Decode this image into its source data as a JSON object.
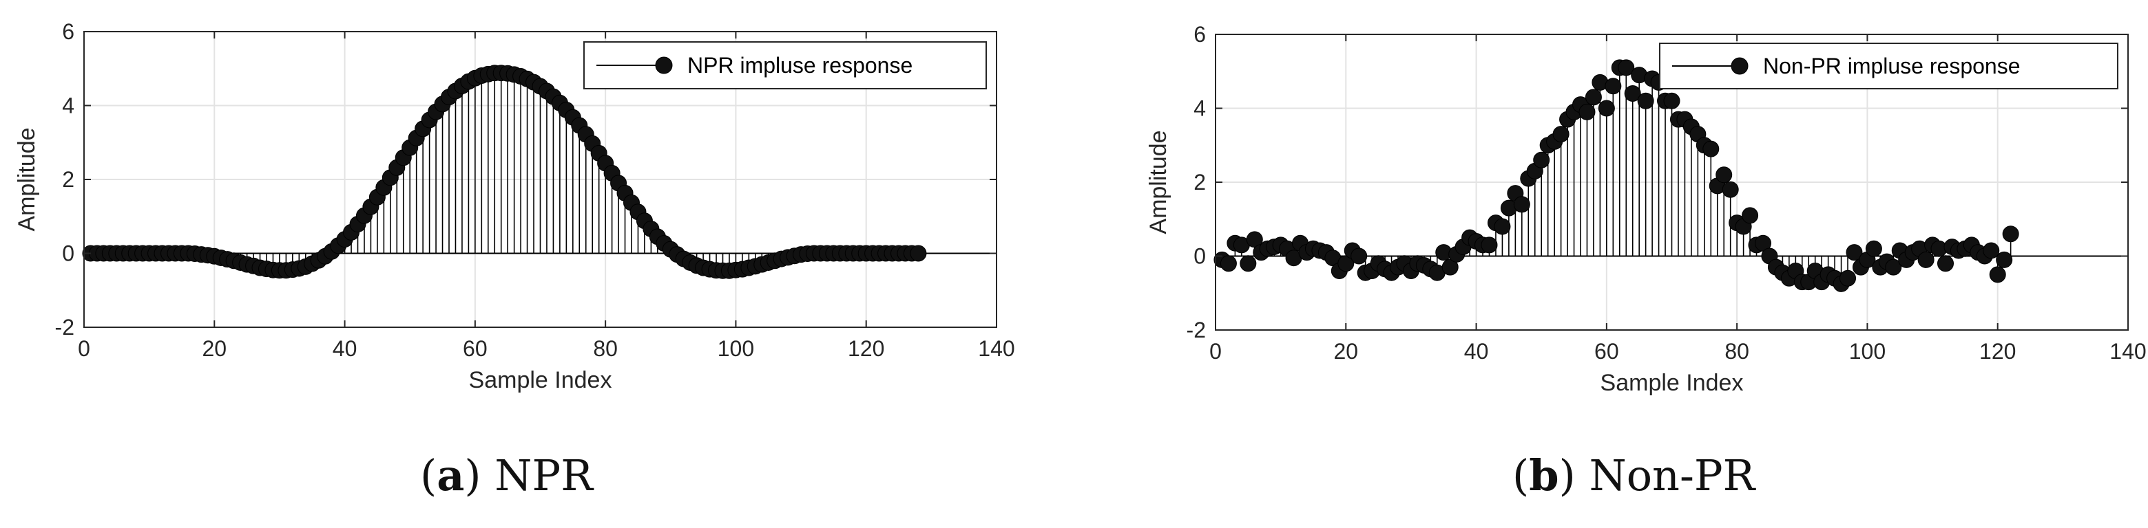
{
  "figure": {
    "captions": [
      {
        "label": "a",
        "text": "NPR"
      },
      {
        "label": "b",
        "text": "Non-PR"
      }
    ]
  },
  "chart_data": [
    {
      "type": "stem",
      "xlabel": "Sample Index",
      "ylabel": "Amplitude",
      "xlim": [
        0,
        140
      ],
      "ylim": [
        -2,
        6
      ],
      "xticks": [
        0,
        20,
        40,
        60,
        80,
        100,
        120,
        140
      ],
      "yticks": [
        -2,
        0,
        2,
        4,
        6
      ],
      "grid": true,
      "legend_position": "top-right",
      "series": [
        {
          "name": "NPR impluse response",
          "color": "#000000",
          "x_start": 1,
          "values": [
            0,
            0,
            0,
            0,
            0,
            0,
            0,
            0,
            0,
            0,
            0,
            0,
            0,
            0,
            0,
            0,
            -0.01,
            -0.03,
            -0.05,
            -0.08,
            -0.12,
            -0.16,
            -0.2,
            -0.25,
            -0.3,
            -0.34,
            -0.39,
            -0.42,
            -0.45,
            -0.46,
            -0.46,
            -0.44,
            -0.41,
            -0.36,
            -0.28,
            -0.19,
            -0.08,
            0.05,
            0.21,
            0.38,
            0.57,
            0.79,
            1.02,
            1.26,
            1.52,
            1.78,
            2.05,
            2.32,
            2.59,
            2.86,
            3.12,
            3.37,
            3.61,
            3.83,
            4.04,
            4.23,
            4.39,
            4.53,
            4.65,
            4.74,
            4.81,
            4.85,
            4.88,
            4.88,
            4.87,
            4.84,
            4.79,
            4.72,
            4.63,
            4.52,
            4.39,
            4.24,
            4.07,
            3.88,
            3.68,
            3.46,
            3.22,
            2.97,
            2.71,
            2.44,
            2.17,
            1.9,
            1.63,
            1.37,
            1.12,
            0.88,
            0.66,
            0.45,
            0.27,
            0.11,
            -0.03,
            -0.15,
            -0.25,
            -0.33,
            -0.39,
            -0.43,
            -0.46,
            -0.47,
            -0.47,
            -0.45,
            -0.43,
            -0.39,
            -0.35,
            -0.3,
            -0.25,
            -0.2,
            -0.15,
            -0.11,
            -0.07,
            -0.03,
            -0.01,
            0,
            0,
            0,
            0,
            0,
            0,
            0,
            0,
            0,
            0,
            0,
            0,
            0,
            0,
            0,
            0,
            0
          ]
        }
      ]
    },
    {
      "type": "stem",
      "xlabel": "Sample Index",
      "ylabel": "Amplitude",
      "xlim": [
        0,
        140
      ],
      "ylim": [
        -2,
        6
      ],
      "xticks": [
        0,
        20,
        40,
        60,
        80,
        100,
        120,
        140
      ],
      "yticks": [
        -2,
        0,
        2,
        4,
        6
      ],
      "grid": true,
      "legend_position": "top-right",
      "series": [
        {
          "name": "Non-PR impluse response",
          "color": "#000000",
          "x_start": 1,
          "values": [
            -0.1,
            -0.2,
            0.35,
            0.3,
            -0.2,
            0.45,
            0.1,
            0.2,
            0.25,
            0.3,
            0.2,
            -0.05,
            0.35,
            0.1,
            0.2,
            0.15,
            0.1,
            -0.05,
            -0.4,
            -0.2,
            0.15,
            0,
            -0.45,
            -0.4,
            -0.2,
            -0.35,
            -0.45,
            -0.3,
            -0.2,
            -0.4,
            -0.2,
            -0.25,
            -0.35,
            -0.45,
            0.1,
            -0.3,
            0.05,
            0.25,
            0.5,
            0.4,
            0.3,
            0.3,
            0.9,
            0.8,
            1.3,
            1.7,
            1.4,
            2.1,
            2.3,
            2.6,
            3.0,
            3.1,
            3.3,
            3.7,
            3.9,
            4.1,
            3.9,
            4.3,
            4.7,
            4.0,
            4.6,
            5.1,
            5.1,
            4.4,
            4.9,
            4.2,
            4.8,
            4.7,
            4.2,
            4.2,
            3.7,
            3.7,
            3.5,
            3.3,
            3.0,
            2.9,
            1.9,
            2.2,
            1.8,
            0.9,
            0.8,
            1.1,
            0.3,
            0.35,
            0,
            -0.3,
            -0.45,
            -0.6,
            -0.4,
            -0.7,
            -0.7,
            -0.4,
            -0.7,
            -0.5,
            -0.6,
            -0.75,
            -0.6,
            0.1,
            -0.3,
            -0.1,
            0.2,
            -0.3,
            -0.15,
            -0.3,
            0.15,
            -0.1,
            0.1,
            0.2,
            -0.1,
            0.3,
            0.2,
            -0.2,
            0.25,
            0.15,
            0.2,
            0.3,
            0.1,
            0,
            0.15,
            -0.5,
            -0.1,
            0.6
          ]
        }
      ]
    }
  ]
}
